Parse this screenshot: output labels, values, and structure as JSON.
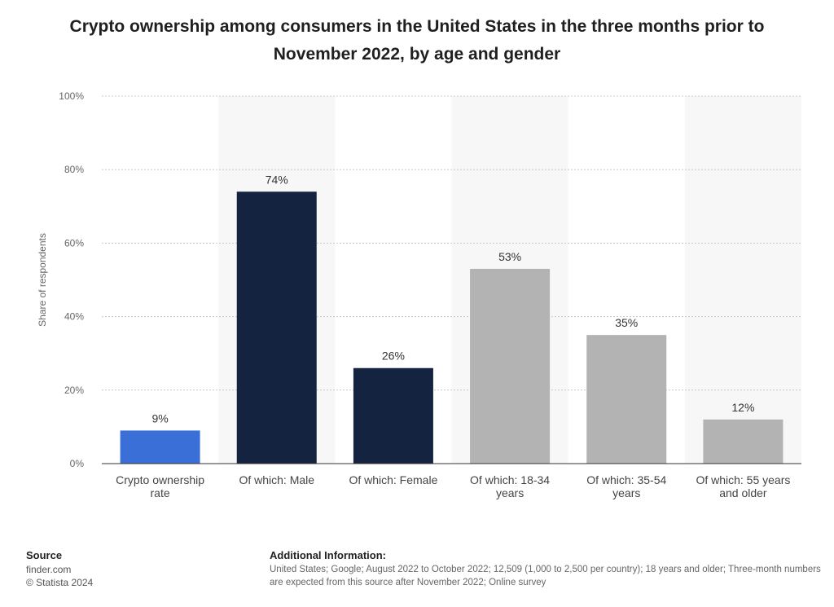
{
  "chart_data": {
    "type": "bar",
    "title": "Crypto ownership among consumers in the United States in the three months prior to November 2022, by age and gender",
    "ylabel": "Share of respondents",
    "xlabel": "",
    "ylim": [
      0,
      100
    ],
    "y_ticks": [
      "0%",
      "20%",
      "40%",
      "60%",
      "80%",
      "100%"
    ],
    "y_tick_values": [
      0,
      20,
      40,
      60,
      80,
      100
    ],
    "grid": true,
    "categories": [
      [
        "Crypto ownership",
        "rate"
      ],
      [
        "Of which: Male"
      ],
      [
        "Of which: Female"
      ],
      [
        "Of which: 18-34",
        "years"
      ],
      [
        "Of which: 35-54",
        "years"
      ],
      [
        "Of which: 55 years",
        "and older"
      ]
    ],
    "values": [
      9,
      74,
      26,
      53,
      35,
      12
    ],
    "value_labels": [
      "9%",
      "74%",
      "26%",
      "53%",
      "35%",
      "12%"
    ],
    "bar_colors": [
      "#3b6fd8",
      "#142340",
      "#142340",
      "#b3b3b3",
      "#b3b3b3",
      "#b3b3b3"
    ],
    "band_color": "#f7f7f7"
  },
  "footer": {
    "source_heading": "Source",
    "source_lines": [
      "finder.com",
      "© Statista 2024"
    ],
    "info_heading": "Additional Information:",
    "info_text": "United States; Google; August 2022 to October 2022; 12,509 (1,000 to 2,500 per country); 18 years and older; Three-month numbers are expected from this source after November 2022; Online survey"
  }
}
